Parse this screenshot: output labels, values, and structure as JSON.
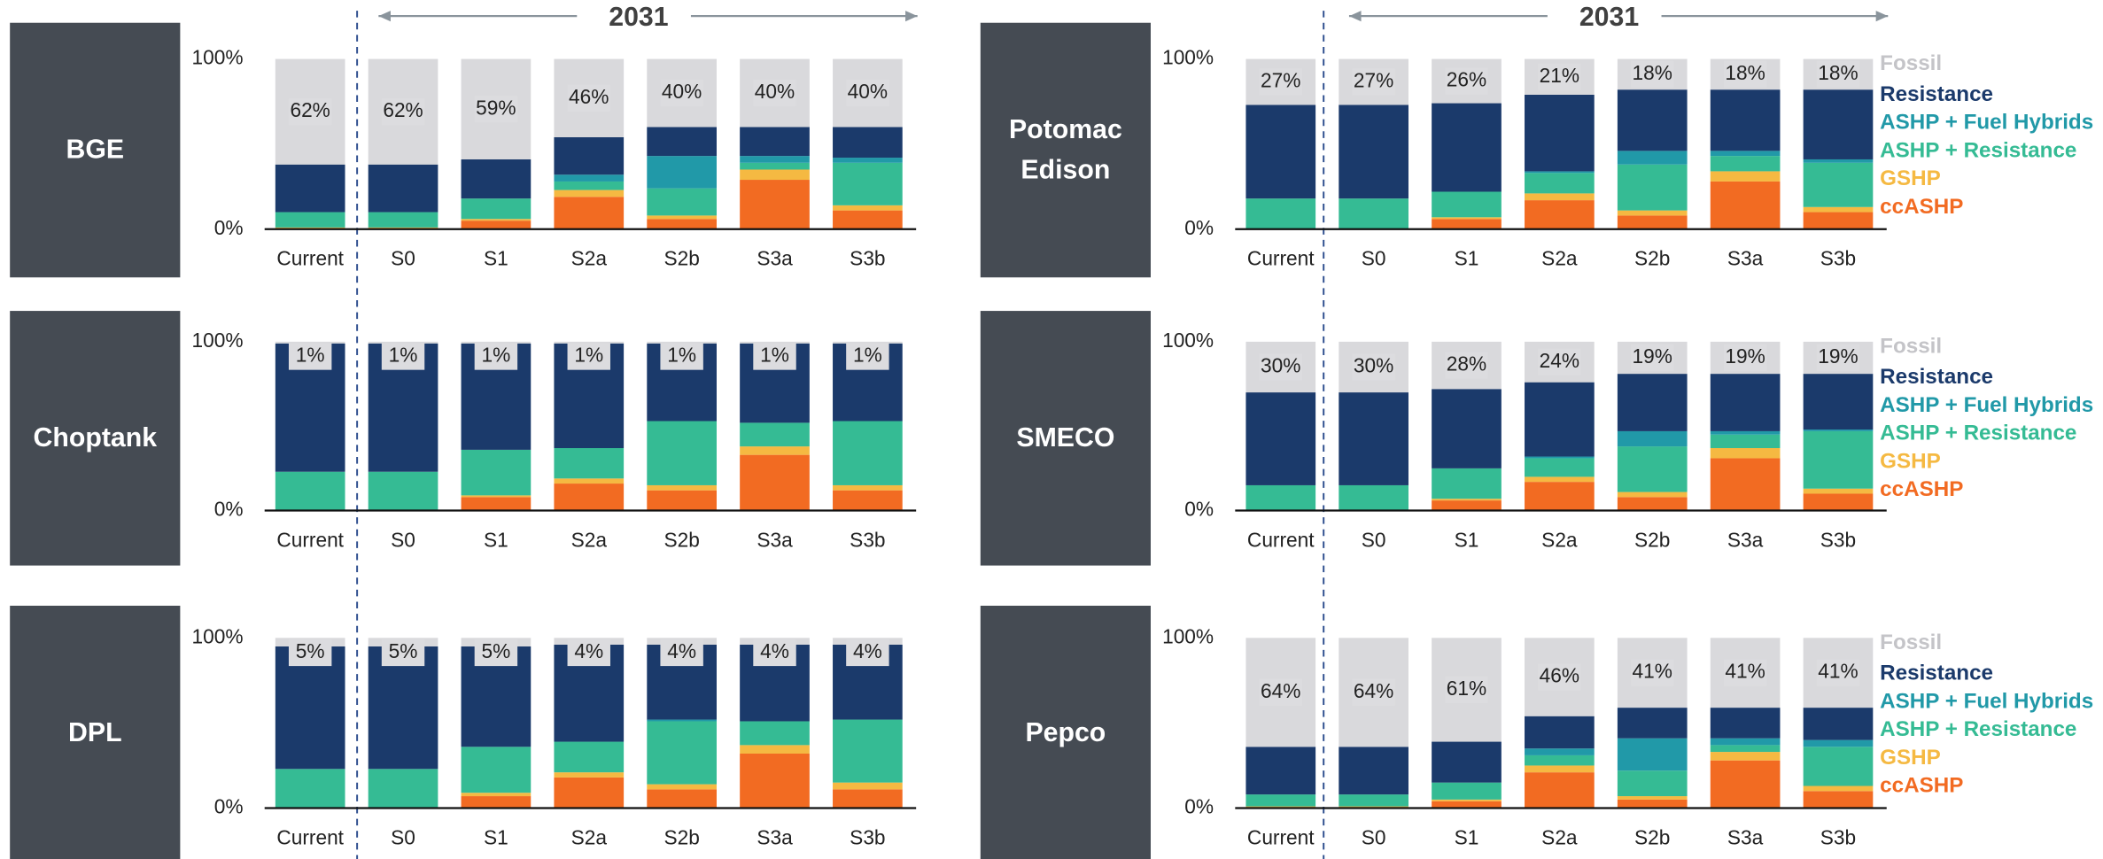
{
  "legend": {
    "series": [
      {
        "name": "Fossil",
        "color": "#d9d9dc"
      },
      {
        "name": "Resistance",
        "color": "#1b3a6b"
      },
      {
        "name": "ASHP + Fuel Hybrids",
        "color": "#2199a8"
      },
      {
        "name": "ASHP + Resistance",
        "color": "#35bb94"
      },
      {
        "name": "GSHP",
        "color": "#f5b942"
      },
      {
        "name": "ccASHP",
        "color": "#f26b22"
      }
    ]
  },
  "chart_data": [
    {
      "type": "bar",
      "stacked": true,
      "label": "BGE",
      "annotation": "2031",
      "legend": false,
      "categories": [
        "Current",
        "S0",
        "S1",
        "S2a",
        "S2b",
        "S3a",
        "S3b"
      ],
      "ylim": [
        0,
        100
      ],
      "yticks": [
        {
          "value": 0,
          "label": "0%"
        },
        {
          "value": 100,
          "label": "100%"
        }
      ],
      "series": [
        {
          "values": [
            62,
            62,
            59,
            46,
            40,
            40,
            40
          ],
          "value_labels": [
            "62%",
            "62%",
            "59%",
            "46%",
            "40%",
            "40%",
            "40%"
          ]
        },
        {
          "values": [
            28,
            28,
            23,
            22,
            17,
            17,
            18
          ]
        },
        {
          "values": [
            0,
            0,
            0,
            4,
            19,
            4,
            3
          ]
        },
        {
          "values": [
            9,
            9,
            12,
            5,
            16,
            4,
            25
          ]
        },
        {
          "values": [
            1,
            1,
            1,
            4,
            2,
            6,
            3
          ]
        },
        {
          "values": [
            0,
            0,
            5,
            19,
            6,
            29,
            11
          ]
        }
      ]
    },
    {
      "type": "bar",
      "stacked": true,
      "label": "Potomac Edison",
      "annotation": "2031",
      "legend": true,
      "categories": [
        "Current",
        "S0",
        "S1",
        "S2a",
        "S2b",
        "S3a",
        "S3b"
      ],
      "ylim": [
        0,
        100
      ],
      "yticks": [
        {
          "value": 0,
          "label": "0%"
        },
        {
          "value": 100,
          "label": "100%"
        }
      ],
      "series": [
        {
          "values": [
            27,
            27,
            26,
            21,
            18,
            18,
            18
          ],
          "value_labels": [
            "27%",
            "27%",
            "26%",
            "21%",
            "18%",
            "18%",
            "18%"
          ]
        },
        {
          "values": [
            55,
            55,
            52,
            45,
            36,
            36,
            41
          ]
        },
        {
          "values": [
            0,
            0,
            0,
            1,
            8,
            3,
            2
          ]
        },
        {
          "values": [
            18,
            18,
            15,
            12,
            27,
            9,
            26
          ]
        },
        {
          "values": [
            0,
            0,
            1,
            4,
            3,
            6,
            3
          ]
        },
        {
          "values": [
            0,
            0,
            6,
            17,
            8,
            28,
            10
          ]
        }
      ]
    },
    {
      "type": "bar",
      "stacked": true,
      "label": "Choptank",
      "legend": false,
      "categories": [
        "Current",
        "S0",
        "S1",
        "S2a",
        "S2b",
        "S3a",
        "S3b"
      ],
      "ylim": [
        0,
        100
      ],
      "yticks": [
        {
          "value": 0,
          "label": "0%"
        },
        {
          "value": 100,
          "label": "100%"
        }
      ],
      "series": [
        {
          "values": [
            1,
            1,
            1,
            1,
            1,
            1,
            1
          ],
          "value_labels": [
            "1%",
            "1%",
            "1%",
            "1%",
            "1%",
            "1%",
            "1%"
          ]
        },
        {
          "values": [
            76,
            76,
            63,
            62,
            46,
            47,
            46
          ]
        },
        {
          "values": [
            0,
            0,
            0,
            0,
            0,
            0,
            0
          ]
        },
        {
          "values": [
            23,
            23,
            27,
            18,
            38,
            14,
            38
          ]
        },
        {
          "values": [
            0,
            0,
            1,
            3,
            3,
            5,
            3
          ]
        },
        {
          "values": [
            0,
            0,
            8,
            16,
            12,
            33,
            12
          ]
        }
      ]
    },
    {
      "type": "bar",
      "stacked": true,
      "label": "SMECO",
      "legend": true,
      "categories": [
        "Current",
        "S0",
        "S1",
        "S2a",
        "S2b",
        "S3a",
        "S3b"
      ],
      "ylim": [
        0,
        100
      ],
      "yticks": [
        {
          "value": 0,
          "label": "0%"
        },
        {
          "value": 100,
          "label": "100%"
        }
      ],
      "series": [
        {
          "values": [
            30,
            30,
            28,
            24,
            19,
            19,
            19
          ],
          "value_labels": [
            "30%",
            "30%",
            "28%",
            "24%",
            "19%",
            "19%",
            "19%"
          ]
        },
        {
          "values": [
            55,
            55,
            47,
            44,
            34,
            34,
            33
          ]
        },
        {
          "values": [
            0,
            0,
            0,
            1,
            9,
            2,
            1
          ]
        },
        {
          "values": [
            15,
            15,
            18,
            11,
            27,
            8,
            34
          ]
        },
        {
          "values": [
            0,
            0,
            1,
            3,
            3,
            6,
            3
          ]
        },
        {
          "values": [
            0,
            0,
            6,
            17,
            8,
            31,
            10
          ]
        }
      ]
    },
    {
      "type": "bar",
      "stacked": true,
      "label": "DPL",
      "legend": false,
      "categories": [
        "Current",
        "S0",
        "S1",
        "S2a",
        "S2b",
        "S3a",
        "S3b"
      ],
      "ylim": [
        0,
        100
      ],
      "yticks": [
        {
          "value": 0,
          "label": "0%"
        },
        {
          "value": 100,
          "label": "100%"
        }
      ],
      "series": [
        {
          "values": [
            5,
            5,
            5,
            4,
            4,
            4,
            4
          ],
          "value_labels": [
            "5%",
            "5%",
            "5%",
            "4%",
            "4%",
            "4%",
            "4%"
          ]
        },
        {
          "values": [
            72,
            72,
            59,
            57,
            44,
            45,
            44
          ]
        },
        {
          "values": [
            0,
            0,
            0,
            0,
            1,
            0,
            0
          ]
        },
        {
          "values": [
            23,
            23,
            27,
            18,
            37,
            14,
            37
          ]
        },
        {
          "values": [
            0,
            0,
            2,
            3,
            3,
            5,
            4
          ]
        },
        {
          "values": [
            0,
            0,
            7,
            18,
            11,
            32,
            11
          ]
        }
      ]
    },
    {
      "type": "bar",
      "stacked": true,
      "label": "Pepco",
      "legend": true,
      "categories": [
        "Current",
        "S0",
        "S1",
        "S2a",
        "S2b",
        "S3a",
        "S3b"
      ],
      "ylim": [
        0,
        100
      ],
      "yticks": [
        {
          "value": 0,
          "label": "0%"
        },
        {
          "value": 100,
          "label": "100%"
        }
      ],
      "series": [
        {
          "values": [
            64,
            64,
            61,
            46,
            41,
            41,
            41
          ],
          "value_labels": [
            "64%",
            "64%",
            "61%",
            "46%",
            "41%",
            "41%",
            "41%"
          ]
        },
        {
          "values": [
            28,
            28,
            24,
            19,
            18,
            18,
            19
          ]
        },
        {
          "values": [
            0,
            0,
            0,
            4,
            19,
            4,
            4
          ]
        },
        {
          "values": [
            7,
            7,
            10,
            6,
            15,
            4,
            23
          ]
        },
        {
          "values": [
            1,
            1,
            1,
            4,
            2,
            5,
            3
          ]
        },
        {
          "values": [
            0,
            0,
            4,
            21,
            5,
            28,
            10
          ]
        }
      ]
    }
  ]
}
